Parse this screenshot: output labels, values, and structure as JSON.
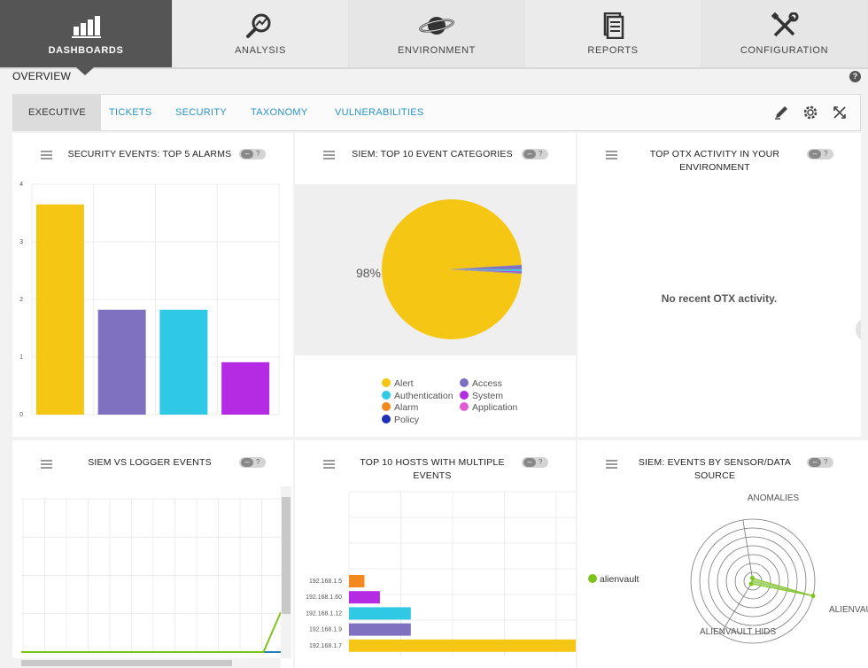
{
  "nav": {
    "items": [
      {
        "label": "DASHBOARDS",
        "icon": "dashboard-bars-icon"
      },
      {
        "label": "ANALYSIS",
        "icon": "analysis-magnifier-icon"
      },
      {
        "label": "ENVIRONMENT",
        "icon": "planet-icon"
      },
      {
        "label": "REPORTS",
        "icon": "report-document-icon"
      },
      {
        "label": "CONFIGURATION",
        "icon": "wrench-screwdriver-icon"
      }
    ]
  },
  "page": {
    "title": "OVERVIEW",
    "help": "?"
  },
  "tabs": {
    "items": [
      {
        "label": "EXECUTIVE"
      },
      {
        "label": "TICKETS"
      },
      {
        "label": "SECURITY"
      },
      {
        "label": "TAXONOMY"
      },
      {
        "label": "VULNERABILITIES"
      }
    ]
  },
  "colors": {
    "yellow": "#f5c614",
    "purple": "#7f71c0",
    "cyan": "#2fc9e6",
    "magenta": "#b52be3",
    "orange": "#f3891f",
    "pink": "#e05cd0",
    "navy": "#1f2fb8",
    "green": "#7cc31e",
    "link": "#2a93c6"
  },
  "panels": {
    "alarms": {
      "title": "SECURITY EVENTS: TOP 5 ALARMS",
      "help": "?"
    },
    "categories": {
      "title": "SIEM: TOP 10 EVENT CATEGORIES",
      "help": "?"
    },
    "otx": {
      "title_line1": "TOP OTX ACTIVITY IN YOUR",
      "title_line2": "ENVIRONMENT",
      "help": "?",
      "empty": "No recent OTX activity."
    },
    "logger": {
      "title": "SIEM VS LOGGER EVENTS",
      "help": "?"
    },
    "hosts": {
      "title_line1": "TOP 10 HOSTS WITH MULTIPLE",
      "title_line2": "EVENTS",
      "help": "?"
    },
    "sensor": {
      "title_line1": "SIEM: EVENTS BY SENSOR/DATA",
      "title_line2": "SOURCE",
      "help": "?"
    }
  },
  "chart_data": [
    {
      "type": "bar",
      "title": "SECURITY EVENTS: TOP 5 ALARMS",
      "categories": [
        "",
        "",
        "",
        ""
      ],
      "values": [
        3.65,
        1.82,
        1.82,
        0.91
      ],
      "colors": [
        "#f5c614",
        "#7f71c0",
        "#2fc9e6",
        "#b52be3"
      ],
      "yticks": [
        "0",
        "1",
        "2",
        "3",
        "4"
      ],
      "ylim": [
        0,
        4
      ],
      "grid": true
    },
    {
      "type": "pie",
      "title": "SIEM: TOP 10 EVENT CATEGORIES",
      "label": "98%",
      "slices": [
        {
          "name": "Alert",
          "value": 98,
          "color": "#f5c614"
        },
        {
          "name": "Access",
          "value": 1,
          "color": "#7f71c0"
        },
        {
          "name": "Authentication",
          "value": 0.5,
          "color": "#2fc9e6"
        },
        {
          "name": "System",
          "value": 0.3,
          "color": "#b52be3"
        },
        {
          "name": "Alarm",
          "value": 0.1,
          "color": "#f3891f"
        },
        {
          "name": "Application",
          "value": 0.05,
          "color": "#e05cd0"
        },
        {
          "name": "Policy",
          "value": 0.05,
          "color": "#1f2fb8"
        }
      ],
      "legend": [
        "Alert",
        "Access",
        "Authentication",
        "System",
        "Alarm",
        "Application",
        "Policy"
      ]
    },
    {
      "type": "line",
      "title": "SIEM VS LOGGER EVENTS",
      "series": [
        {
          "values": [
            0,
            0,
            0,
            0,
            0,
            0,
            0,
            0,
            0,
            0,
            0,
            0,
            0,
            0,
            0,
            1
          ]
        }
      ],
      "grid": true
    },
    {
      "type": "bar",
      "orientation": "horizontal",
      "title": "TOP 10 HOSTS WITH MULTIPLE EVENTS",
      "categories": [
        "192.168.1.5",
        "192.168.1.60",
        "192.168.1.12",
        "192.168.1.9",
        "192.168.1.7"
      ],
      "values": [
        1.5,
        3,
        6,
        6,
        22
      ],
      "colors": [
        "#f3891f",
        "#b52be3",
        "#2fc9e6",
        "#7f71c0",
        "#f5c614"
      ],
      "xlim": [
        0,
        22
      ],
      "grid": true
    },
    {
      "type": "radar",
      "title": "SIEM: EVENTS BY SENSOR/DATA SOURCE",
      "axes": [
        "ANOMALIES",
        "ALIENVAULT",
        "ALIENVAULT HIDS"
      ],
      "series": [
        {
          "name": "alienvault",
          "values": [
            0.05,
            1,
            0.05
          ]
        }
      ],
      "legend": [
        "alienvault"
      ]
    }
  ]
}
